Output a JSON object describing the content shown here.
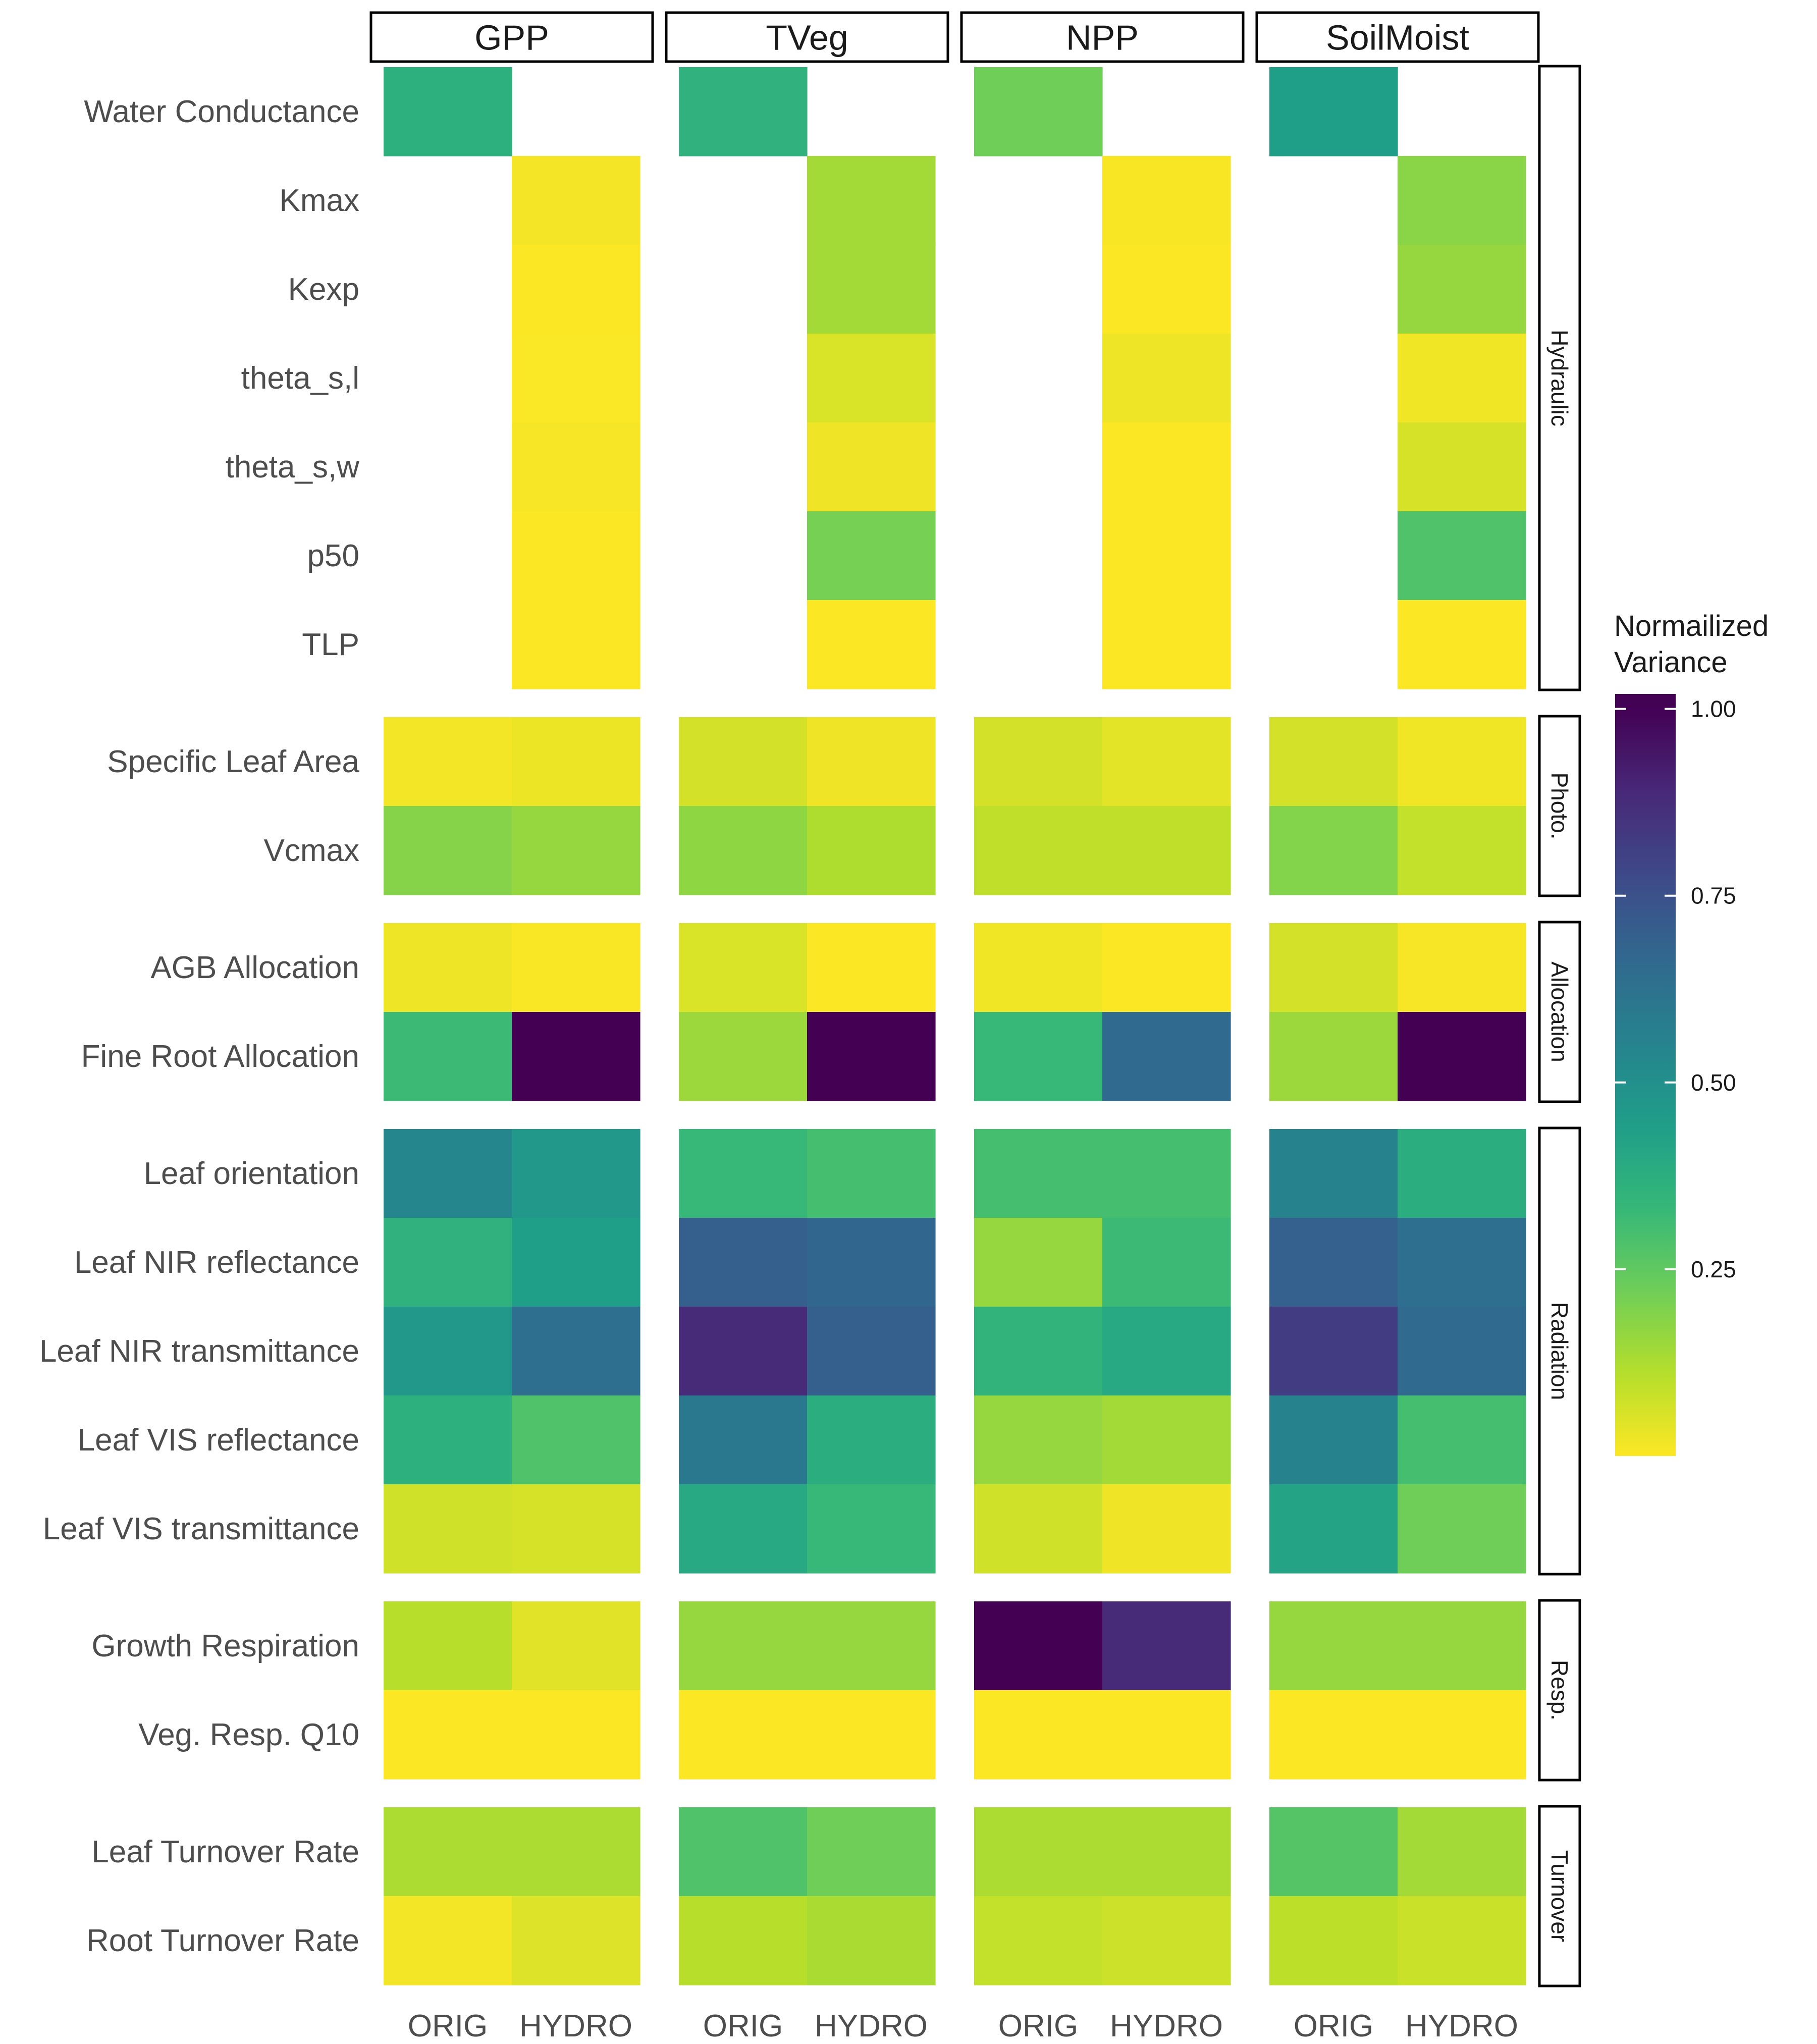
{
  "chart_data": {
    "type": "heatmap",
    "facets": [
      "GPP",
      "TVeg",
      "NPP",
      "SoilMoist"
    ],
    "columns": [
      "ORIG",
      "HYDRO"
    ],
    "groups": [
      {
        "name": "Hydraulic",
        "rows": [
          "Water Conductance",
          "Kmax",
          "Kexp",
          "theta_s,l",
          "theta_s,w",
          "p50",
          "TLP"
        ]
      },
      {
        "name": "Photo.",
        "rows": [
          "Specific Leaf Area",
          "Vcmax"
        ]
      },
      {
        "name": "Allocation",
        "rows": [
          "AGB Allocation",
          "Fine Root Allocation"
        ]
      },
      {
        "name": "Radiation",
        "rows": [
          "Leaf orientation",
          "Leaf NIR reflectance",
          "Leaf NIR transmittance",
          "Leaf VIS reflectance",
          "Leaf VIS transmittance"
        ]
      },
      {
        "name": "Resp.",
        "rows": [
          "Growth Respiration",
          "Veg. Resp. Q10"
        ]
      },
      {
        "name": "Turnover",
        "rows": [
          "Leaf Turnover Rate",
          "Root Turnover Rate"
        ]
      }
    ],
    "values": {
      "GPP": [
        [
          0.37,
          null
        ],
        [
          null,
          0.0145
        ],
        [
          null,
          0.0015
        ],
        [
          null,
          0.005
        ],
        [
          null,
          0.0095
        ],
        [
          null,
          0.0015
        ],
        [
          null,
          0.0015
        ],
        [
          0.0175,
          0.026
        ],
        [
          0.185,
          0.16
        ],
        [
          0.025,
          0.006
        ],
        [
          0.32,
          1.0
        ],
        [
          0.54,
          0.47
        ],
        [
          0.36,
          0.44
        ],
        [
          0.47,
          0.64
        ],
        [
          0.37,
          0.28
        ],
        [
          0.07,
          0.06
        ],
        [
          0.11,
          0.045
        ],
        [
          0.0015,
          0.0015
        ],
        [
          0.125,
          0.125
        ],
        [
          0.016,
          0.05
        ]
      ],
      "TVeg": [
        [
          0.36,
          null
        ],
        [
          null,
          0.14
        ],
        [
          null,
          0.14
        ],
        [
          null,
          0.055
        ],
        [
          null,
          0.021
        ],
        [
          null,
          0.21
        ],
        [
          null,
          0.0015
        ],
        [
          0.065,
          0.021
        ],
        [
          0.17,
          0.12
        ],
        [
          0.055,
          0.0015
        ],
        [
          0.15,
          1.0
        ],
        [
          0.33,
          0.3
        ],
        [
          0.7,
          0.67
        ],
        [
          0.88,
          0.7
        ],
        [
          0.6,
          0.38
        ],
        [
          0.4,
          0.33
        ],
        [
          0.16,
          0.16
        ],
        [
          0.0015,
          0.0015
        ],
        [
          0.28,
          0.22
        ],
        [
          0.11,
          0.13
        ]
      ],
      "NPP": [
        [
          0.22,
          null
        ],
        [
          null,
          0.007
        ],
        [
          null,
          0.0015
        ],
        [
          null,
          0.024
        ],
        [
          null,
          0.0015
        ],
        [
          null,
          0.0015
        ],
        [
          null,
          0.0015
        ],
        [
          0.065,
          0.04
        ],
        [
          0.095,
          0.095
        ],
        [
          0.018,
          0.0015
        ],
        [
          0.33,
          0.66
        ],
        [
          0.3,
          0.3
        ],
        [
          0.16,
          0.32
        ],
        [
          0.35,
          0.4
        ],
        [
          0.16,
          0.14
        ],
        [
          0.07,
          0.022
        ],
        [
          1.0,
          0.88
        ],
        [
          0.0015,
          0.0015
        ],
        [
          0.125,
          0.125
        ],
        [
          0.09,
          0.075
        ]
      ],
      "SoilMoist": [
        [
          0.44,
          null
        ],
        [
          null,
          0.18
        ],
        [
          null,
          0.16
        ],
        [
          null,
          0.018
        ],
        [
          null,
          0.06
        ],
        [
          null,
          0.28
        ],
        [
          null,
          0.0015
        ],
        [
          0.065,
          0.018
        ],
        [
          0.19,
          0.09
        ],
        [
          0.065,
          0.0085
        ],
        [
          0.15,
          1.0
        ],
        [
          0.55,
          0.38
        ],
        [
          0.69,
          0.64
        ],
        [
          0.82,
          0.66
        ],
        [
          0.55,
          0.3
        ],
        [
          0.42,
          0.22
        ],
        [
          0.16,
          0.16
        ],
        [
          0.0015,
          0.0015
        ],
        [
          0.27,
          0.14
        ],
        [
          0.1,
          0.08
        ]
      ]
    },
    "legend": {
      "title_lines": [
        "Normailized",
        "Variance"
      ],
      "ticks": [
        0.25,
        0.5,
        0.75,
        1.0
      ],
      "tick_labels": [
        "0.25",
        "0.50",
        "0.75",
        "1.00"
      ],
      "range": [
        0,
        1.02
      ],
      "color_low": "#fde725",
      "color_high": "#440154"
    },
    "palette_stops": [
      "#fde725",
      "#b5de2b",
      "#6ece58",
      "#35b779",
      "#1f9e89",
      "#26828e",
      "#31688e",
      "#3e4989",
      "#482878",
      "#440154"
    ]
  }
}
